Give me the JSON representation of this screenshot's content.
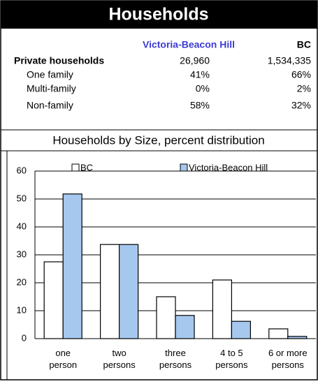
{
  "header": {
    "title": "Households"
  },
  "table": {
    "columns": [
      "Victoria-Beacon Hill",
      "BC"
    ],
    "rows": [
      {
        "label": "Private households",
        "values": [
          "26,960",
          "1,534,335"
        ]
      },
      {
        "label": "One family",
        "values": [
          "41%",
          "66%"
        ]
      },
      {
        "label": "Multi-family",
        "values": [
          "0%",
          "2%"
        ]
      },
      {
        "label": "Non-family",
        "values": [
          "58%",
          "32%"
        ]
      }
    ]
  },
  "chart_data": {
    "type": "bar",
    "title": "Households by Size, percent distribution",
    "categories": [
      "one person",
      "two persons",
      "three persons",
      "4 to 5 persons",
      "6 or  more persons"
    ],
    "series": [
      {
        "name": "BC",
        "color": "#ffffff",
        "values": [
          27.5,
          33.7,
          15,
          21,
          3.5
        ]
      },
      {
        "name": "Victoria-Beacon Hill",
        "color": "#a6c8ef",
        "values": [
          51.8,
          33.7,
          8.3,
          6.2,
          0.8
        ]
      }
    ],
    "ylim": [
      0,
      60
    ],
    "yticks": [
      0,
      10,
      20,
      30,
      40,
      50,
      60
    ],
    "grid": true,
    "legend": "top"
  }
}
